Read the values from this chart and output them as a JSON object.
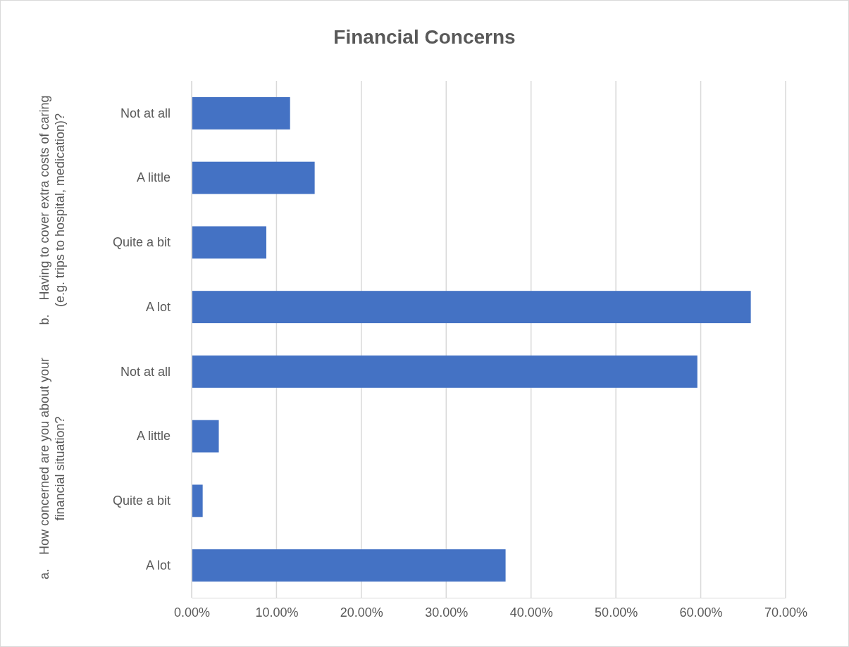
{
  "chart_data": {
    "type": "bar",
    "orientation": "horizontal",
    "title": "Financial Concerns",
    "categories": [
      "Not at all",
      "A little",
      "Quite a bit",
      "A lot",
      "Not at all",
      "A little",
      "Quite a bit",
      "A lot"
    ],
    "values": [
      11.6,
      14.5,
      8.8,
      65.9,
      59.6,
      3.2,
      1.3,
      37.0
    ],
    "color": "#4472c4",
    "xlim": [
      0,
      70
    ],
    "xticks": [
      {
        "value": 0,
        "label": "0.00%"
      },
      {
        "value": 10,
        "label": "10.00%"
      },
      {
        "value": 20,
        "label": "20.00%"
      },
      {
        "value": 30,
        "label": "30.00%"
      },
      {
        "value": 40,
        "label": "40.00%"
      },
      {
        "value": 50,
        "label": "50.00%"
      },
      {
        "value": 60,
        "label": "60.00%"
      },
      {
        "value": 70,
        "label": "70.00%"
      }
    ],
    "grid": "x",
    "annotations": [
      "b.    Having to cover extra costs of caring (e.g. trips to hospital, medication)?",
      "a.    How concerned are you about your financial situation?"
    ]
  }
}
